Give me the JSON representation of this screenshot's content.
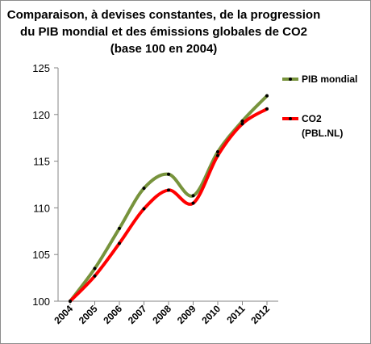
{
  "chart_data": {
    "type": "line",
    "title_lines": [
      "Comparaison, à devises constantes, de la progression",
      "du PIB mondial et des émissions globales de CO2",
      "(base 100 en 2004)"
    ],
    "categories": [
      "2004",
      "2005",
      "2006",
      "2007",
      "2008",
      "2009",
      "2010",
      "2011",
      "2012"
    ],
    "ylim": [
      100,
      125
    ],
    "yticks": [
      100,
      105,
      110,
      115,
      120,
      125
    ],
    "grid": false,
    "legend_position": "right",
    "series": [
      {
        "name": "PIB mondial",
        "color": "#77933c",
        "values": [
          100,
          103.5,
          107.8,
          112.1,
          113.6,
          111.3,
          116.0,
          119.3,
          122.0
        ]
      },
      {
        "name": "CO2 (PBL.NL)",
        "legend_lines": [
          "CO2",
          "(PBL.NL)"
        ],
        "color": "#ff0000",
        "values": [
          100,
          102.7,
          106.2,
          109.9,
          111.9,
          110.5,
          115.6,
          119.0,
          120.6
        ]
      }
    ]
  }
}
